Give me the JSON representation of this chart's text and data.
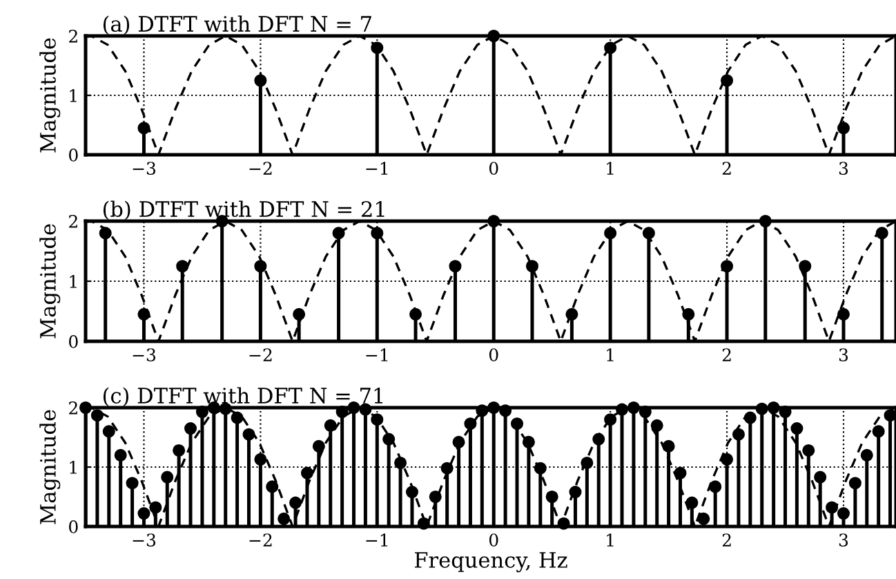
{
  "chart_data": [
    {
      "type": "lollipop",
      "title": "(a) DTFT with DFT N = 7",
      "ylabel": "Magnitude",
      "xlim": [
        -3.5,
        3.45
      ],
      "ylim": [
        0,
        2
      ],
      "xticks": [
        {
          "value": -3,
          "label": "−3"
        },
        {
          "value": -2,
          "label": "−2"
        },
        {
          "value": -1,
          "label": "−1"
        },
        0,
        1,
        2,
        3
      ],
      "yticks": [
        0,
        1,
        2
      ],
      "grid": true,
      "legend": false,
      "series": [
        {
          "type": "line",
          "line_style": "dashed",
          "marker": "none",
          "color": "#000000",
          "x": [
            -3.5,
            -3.45,
            -3.31,
            -3.16,
            -3.02,
            -2.875,
            -2.73,
            -2.59,
            -2.44,
            -2.3,
            -2.16,
            -2.01,
            -1.87,
            -1.725,
            -1.58,
            -1.44,
            -1.29,
            -1.15,
            -1.01,
            -0.86,
            -0.72,
            -0.575,
            -0.43,
            -0.29,
            -0.14,
            0,
            0.14,
            0.29,
            0.43,
            0.575,
            0.72,
            0.86,
            1.01,
            1.15,
            1.29,
            1.44,
            1.58,
            1.725,
            1.87,
            2.01,
            2.16,
            2.3,
            2.44,
            2.59,
            2.73,
            2.875,
            3.02,
            3.16,
            3.31,
            3.45
          ],
          "values": [
            1.99,
            2,
            1.85,
            1.41,
            0.77,
            0,
            0.77,
            1.41,
            1.85,
            2,
            1.85,
            1.41,
            0.77,
            0,
            0.77,
            1.41,
            1.85,
            2,
            1.85,
            1.41,
            0.77,
            0,
            0.77,
            1.41,
            1.85,
            2,
            1.85,
            1.41,
            0.77,
            0,
            0.77,
            1.41,
            1.85,
            2,
            1.85,
            1.41,
            0.77,
            0,
            0.77,
            1.41,
            1.85,
            2,
            1.85,
            1.41,
            0.77,
            0,
            0.77,
            1.41,
            1.85,
            2
          ]
        },
        {
          "marker": "circle",
          "color": "#000000",
          "x": [
            -3,
            -2,
            -1,
            0,
            1,
            2,
            3
          ],
          "values": [
            0.45,
            1.25,
            1.8,
            2,
            1.8,
            1.25,
            0.45
          ]
        }
      ]
    },
    {
      "type": "lollipop",
      "title": "(b) DTFT with DFT N = 21",
      "ylabel": "Magnitude",
      "xlim": [
        -3.5,
        3.45
      ],
      "ylim": [
        0,
        2
      ],
      "xticks": [
        {
          "value": -3,
          "label": "−3"
        },
        {
          "value": -2,
          "label": "−2"
        },
        {
          "value": -1,
          "label": "−1"
        },
        0,
        1,
        2,
        3
      ],
      "yticks": [
        0,
        1,
        2
      ],
      "grid": true,
      "legend": false,
      "series": [
        {
          "type": "line",
          "line_style": "dashed",
          "marker": "none",
          "color": "#000000",
          "x": [
            -3.5,
            -3.45,
            -3.31,
            -3.16,
            -3.02,
            -2.875,
            -2.73,
            -2.59,
            -2.44,
            -2.3,
            -2.16,
            -2.01,
            -1.87,
            -1.725,
            -1.58,
            -1.44,
            -1.29,
            -1.15,
            -1.01,
            -0.86,
            -0.72,
            -0.575,
            -0.43,
            -0.29,
            -0.14,
            0,
            0.14,
            0.29,
            0.43,
            0.575,
            0.72,
            0.86,
            1.01,
            1.15,
            1.29,
            1.44,
            1.58,
            1.725,
            1.87,
            2.01,
            2.16,
            2.3,
            2.44,
            2.59,
            2.73,
            2.875,
            3.02,
            3.16,
            3.31,
            3.45
          ],
          "values": [
            1.99,
            2,
            1.85,
            1.41,
            0.77,
            0,
            0.77,
            1.41,
            1.85,
            2,
            1.85,
            1.41,
            0.77,
            0,
            0.77,
            1.41,
            1.85,
            2,
            1.85,
            1.41,
            0.77,
            0,
            0.77,
            1.41,
            1.85,
            2,
            1.85,
            1.41,
            0.77,
            0,
            0.77,
            1.41,
            1.85,
            2,
            1.85,
            1.41,
            0.77,
            0,
            0.77,
            1.41,
            1.85,
            2,
            1.85,
            1.41,
            0.77,
            0,
            0.77,
            1.41,
            1.85,
            2
          ]
        },
        {
          "marker": "circle",
          "color": "#000000",
          "x": [
            -3.33,
            -3,
            -2.67,
            -2.33,
            -2,
            -1.67,
            -1.33,
            -1,
            -0.67,
            -0.33,
            0,
            0.33,
            0.67,
            1,
            1.33,
            1.67,
            2,
            2.33,
            2.67,
            3,
            3.33
          ],
          "values": [
            1.8,
            0.45,
            1.25,
            2,
            1.25,
            0.45,
            1.8,
            1.8,
            0.45,
            1.25,
            2,
            1.25,
            0.45,
            1.8,
            1.8,
            0.45,
            1.25,
            2,
            1.25,
            0.45,
            1.8
          ]
        }
      ]
    },
    {
      "type": "lollipop",
      "title": "(c) DTFT with DFT N = 71",
      "xlabel": "Frequency, Hz",
      "ylabel": "Magnitude",
      "xlim": [
        -3.5,
        3.45
      ],
      "ylim": [
        0,
        2
      ],
      "xticks": [
        {
          "value": -3,
          "label": "−3"
        },
        {
          "value": -2,
          "label": "−2"
        },
        {
          "value": -1,
          "label": "−1"
        },
        0,
        1,
        2,
        3
      ],
      "yticks": [
        0,
        1,
        2
      ],
      "grid": true,
      "legend": false,
      "series": [
        {
          "type": "line",
          "line_style": "dashed",
          "marker": "none",
          "color": "#000000",
          "x": [
            -3.5,
            -3.45,
            -3.31,
            -3.16,
            -3.02,
            -2.875,
            -2.73,
            -2.59,
            -2.44,
            -2.3,
            -2.16,
            -2.01,
            -1.87,
            -1.725,
            -1.58,
            -1.44,
            -1.29,
            -1.15,
            -1.01,
            -0.86,
            -0.72,
            -0.575,
            -0.43,
            -0.29,
            -0.14,
            0,
            0.14,
            0.29,
            0.43,
            0.575,
            0.72,
            0.86,
            1.01,
            1.15,
            1.29,
            1.44,
            1.58,
            1.725,
            1.87,
            2.01,
            2.16,
            2.3,
            2.44,
            2.59,
            2.73,
            2.875,
            3.02,
            3.16,
            3.31,
            3.45
          ],
          "values": [
            1.99,
            2,
            1.85,
            1.41,
            0.77,
            0,
            0.77,
            1.41,
            1.85,
            2,
            1.85,
            1.41,
            0.77,
            0,
            0.77,
            1.41,
            1.85,
            2,
            1.85,
            1.41,
            0.77,
            0,
            0.77,
            1.41,
            1.85,
            2,
            1.85,
            1.41,
            0.77,
            0,
            0.77,
            1.41,
            1.85,
            2,
            1.85,
            1.41,
            0.77,
            0,
            0.77,
            1.41,
            1.85,
            2,
            1.85,
            1.41,
            0.77,
            0,
            0.77,
            1.41,
            1.85,
            2
          ]
        },
        {
          "marker": "circle",
          "color": "#000000",
          "x": [
            -3.5,
            -3.4,
            -3.3,
            -3.2,
            -3.1,
            -3.0,
            -2.9,
            -2.8,
            -2.7,
            -2.6,
            -2.5,
            -2.4,
            -2.3,
            -2.2,
            -2.1,
            -2.0,
            -1.9,
            -1.8,
            -1.7,
            -1.6,
            -1.5,
            -1.4,
            -1.3,
            -1.2,
            -1.1,
            -1.0,
            -0.9,
            -0.8,
            -0.7,
            -0.6,
            -0.5,
            -0.4,
            -0.3,
            -0.2,
            -0.1,
            0,
            0.1,
            0.2,
            0.3,
            0.4,
            0.5,
            0.6,
            0.7,
            0.8,
            0.9,
            1.0,
            1.1,
            1.2,
            1.3,
            1.4,
            1.5,
            1.6,
            1.7,
            1.8,
            1.9,
            2.0,
            2.1,
            2.2,
            2.3,
            2.4,
            2.5,
            2.6,
            2.7,
            2.8,
            2.9,
            3.0,
            3.1,
            3.2,
            3.3,
            3.4
          ],
          "values": [
            2.0,
            1.87,
            1.6,
            1.2,
            0.73,
            0.22,
            0.32,
            0.83,
            1.28,
            1.65,
            1.93,
            2.0,
            1.98,
            1.83,
            1.55,
            1.13,
            0.67,
            0.13,
            0.4,
            0.9,
            1.35,
            1.7,
            1.93,
            2.0,
            1.97,
            1.8,
            1.47,
            1.07,
            0.58,
            0.05,
            0.5,
            0.98,
            1.42,
            1.73,
            1.95,
            2.0,
            1.95,
            1.73,
            1.42,
            0.98,
            0.5,
            0.05,
            0.58,
            1.07,
            1.47,
            1.8,
            1.97,
            2.0,
            1.93,
            1.7,
            1.35,
            0.9,
            0.4,
            0.13,
            0.67,
            1.13,
            1.55,
            1.83,
            1.98,
            2.0,
            1.93,
            1.65,
            1.28,
            0.83,
            0.32,
            0.22,
            0.73,
            1.2,
            1.6,
            1.87
          ]
        }
      ]
    }
  ]
}
